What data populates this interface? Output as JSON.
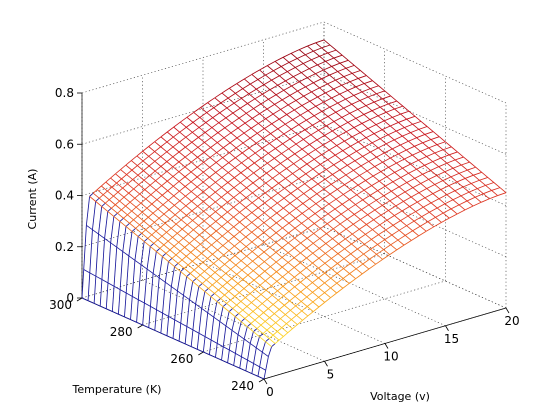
{
  "chart_data": {
    "type": "surface",
    "xlabel": "Voltage (v)",
    "ylabel": "Temperature (K)",
    "zlabel": "Current (A)",
    "xlim": [
      0,
      20
    ],
    "ylim": [
      240,
      300
    ],
    "zlim": [
      0,
      0.8
    ],
    "x_ticks": [
      "0",
      "5",
      "10",
      "15",
      "20"
    ],
    "y_ticks": [
      "240",
      "260",
      "280",
      "300"
    ],
    "z_ticks": [
      "0",
      "0.2",
      "0.4",
      "0.6",
      "0.8"
    ],
    "grid": true,
    "colormap": "hot (low values yellow, high values dark red), steep low-voltage wall in blue",
    "surface_corner_values": {
      "v0_t240": 0.1,
      "v0_t300": 0.37,
      "v20_t240": 0.45,
      "v20_t300": 0.73
    },
    "knee_voltage": 0.5,
    "voltage_samples": 40,
    "temperature_samples": 31
  }
}
